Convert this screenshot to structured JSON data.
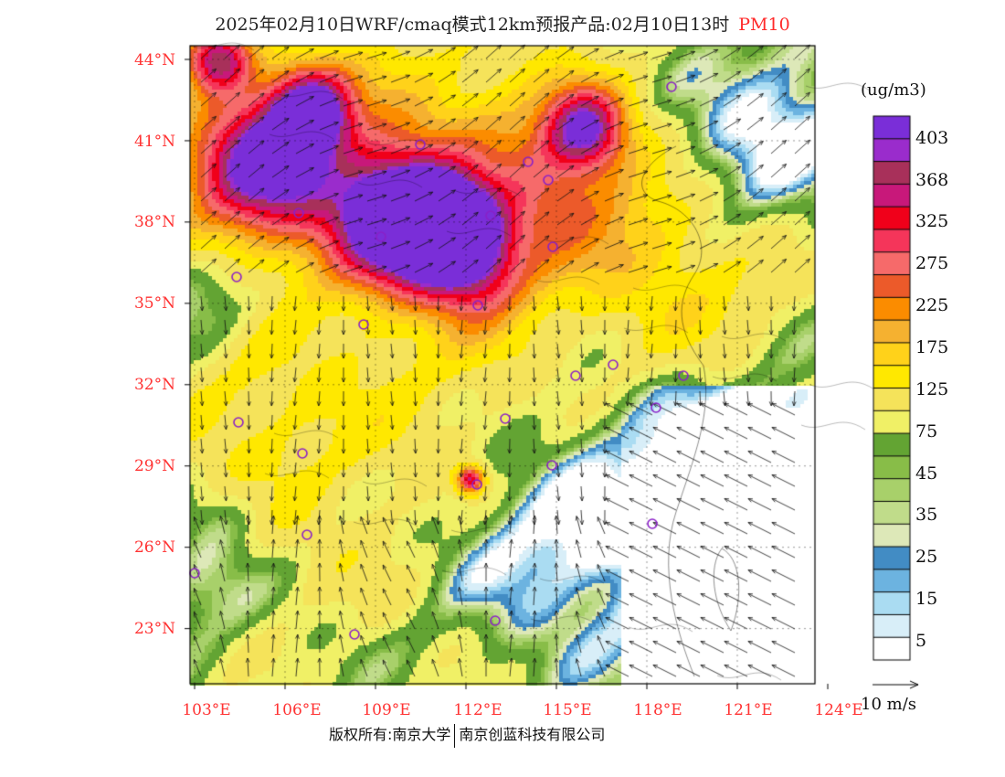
{
  "title": {
    "main": "2025年02月10日WRF/cmaq模式12km预报产品:02月10日13时",
    "product": "PM10"
  },
  "axes": {
    "lat_labels": [
      "44°N",
      "41°N",
      "38°N",
      "35°N",
      "32°N",
      "29°N",
      "26°N",
      "23°N"
    ],
    "lat_values": [
      44,
      41,
      38,
      35,
      32,
      29,
      26,
      23
    ],
    "lon_labels": [
      "103°E",
      "106°E",
      "109°E",
      "112°E",
      "115°E",
      "118°E",
      "121°E",
      "124°E"
    ],
    "lon_values": [
      103,
      106,
      109,
      112,
      115,
      118,
      121,
      124
    ]
  },
  "colorbar": {
    "unit": "(ug/m3)",
    "colors": [
      "#ffffff",
      "#d8eef8",
      "#aadcf2",
      "#6cb3e0",
      "#428cc4",
      "#dde8b8",
      "#c0dc8a",
      "#a8d06a",
      "#88bd48",
      "#63a433",
      "#f0f066",
      "#f5e35a",
      "#ffe800",
      "#ffd21a",
      "#f5b130",
      "#fb8c00",
      "#ec5a2a",
      "#f66a6a",
      "#f5355a",
      "#f0001a",
      "#c8187a",
      "#a8305a",
      "#9a2ccc",
      "#7a2ed8"
    ],
    "labels": [
      "5",
      "15",
      "25",
      "35",
      "45",
      "75",
      "125",
      "175",
      "225",
      "275",
      "325",
      "368",
      "403"
    ]
  },
  "wind_legend": "10 m/s",
  "footer": {
    "left": "版权所有:南京大学",
    "right": "南京创蓝科技有限公司"
  }
}
